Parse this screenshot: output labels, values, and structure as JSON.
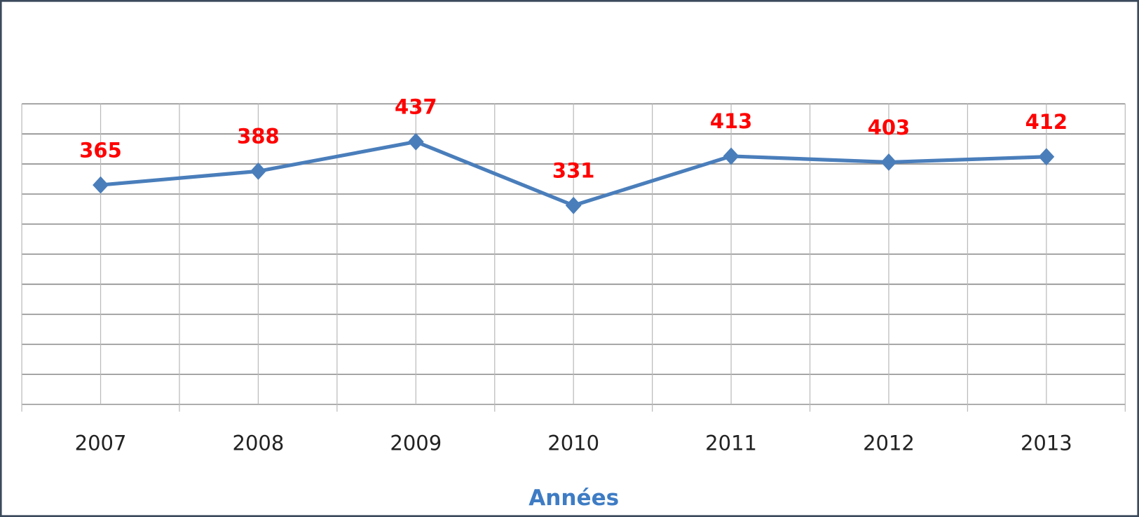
{
  "chart_data": {
    "type": "line",
    "x_label": "Années",
    "categories": [
      "2007",
      "2008",
      "2009",
      "2010",
      "2011",
      "2012",
      "2013"
    ],
    "series": [
      {
        "color": "#4a7ebb",
        "values": [
          365,
          388,
          437,
          331,
          413,
          403,
          412
        ]
      }
    ],
    "ylim": [
      0,
      500
    ],
    "yticks": [
      0,
      50,
      100,
      150,
      200,
      250,
      300,
      350,
      400,
      450,
      500
    ],
    "grid": true,
    "value_label_color": "#ff0000"
  }
}
